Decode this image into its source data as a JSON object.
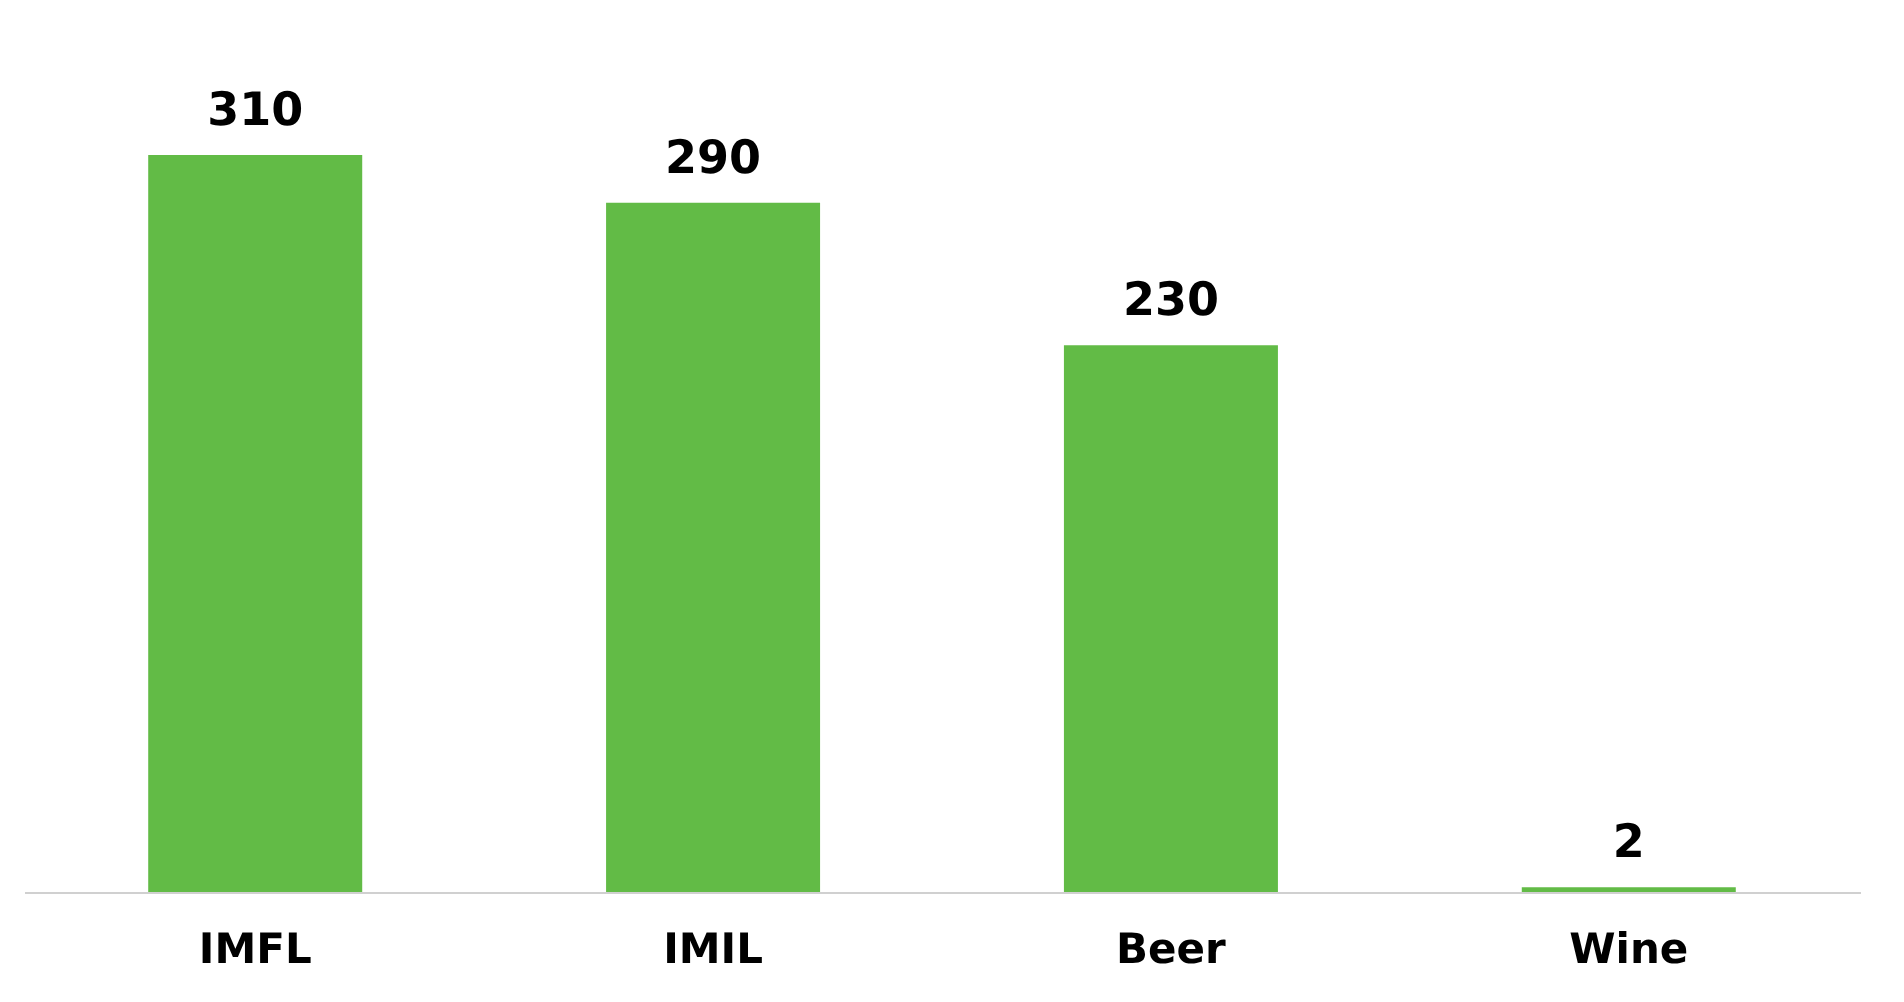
{
  "chart_data": {
    "type": "bar",
    "categories": [
      "IMFL",
      "IMIL",
      "Beer",
      "Wine"
    ],
    "values": [
      310,
      290,
      230,
      2
    ],
    "color": "#62bb46",
    "data_labels": true,
    "tick_labels": "x"
  }
}
